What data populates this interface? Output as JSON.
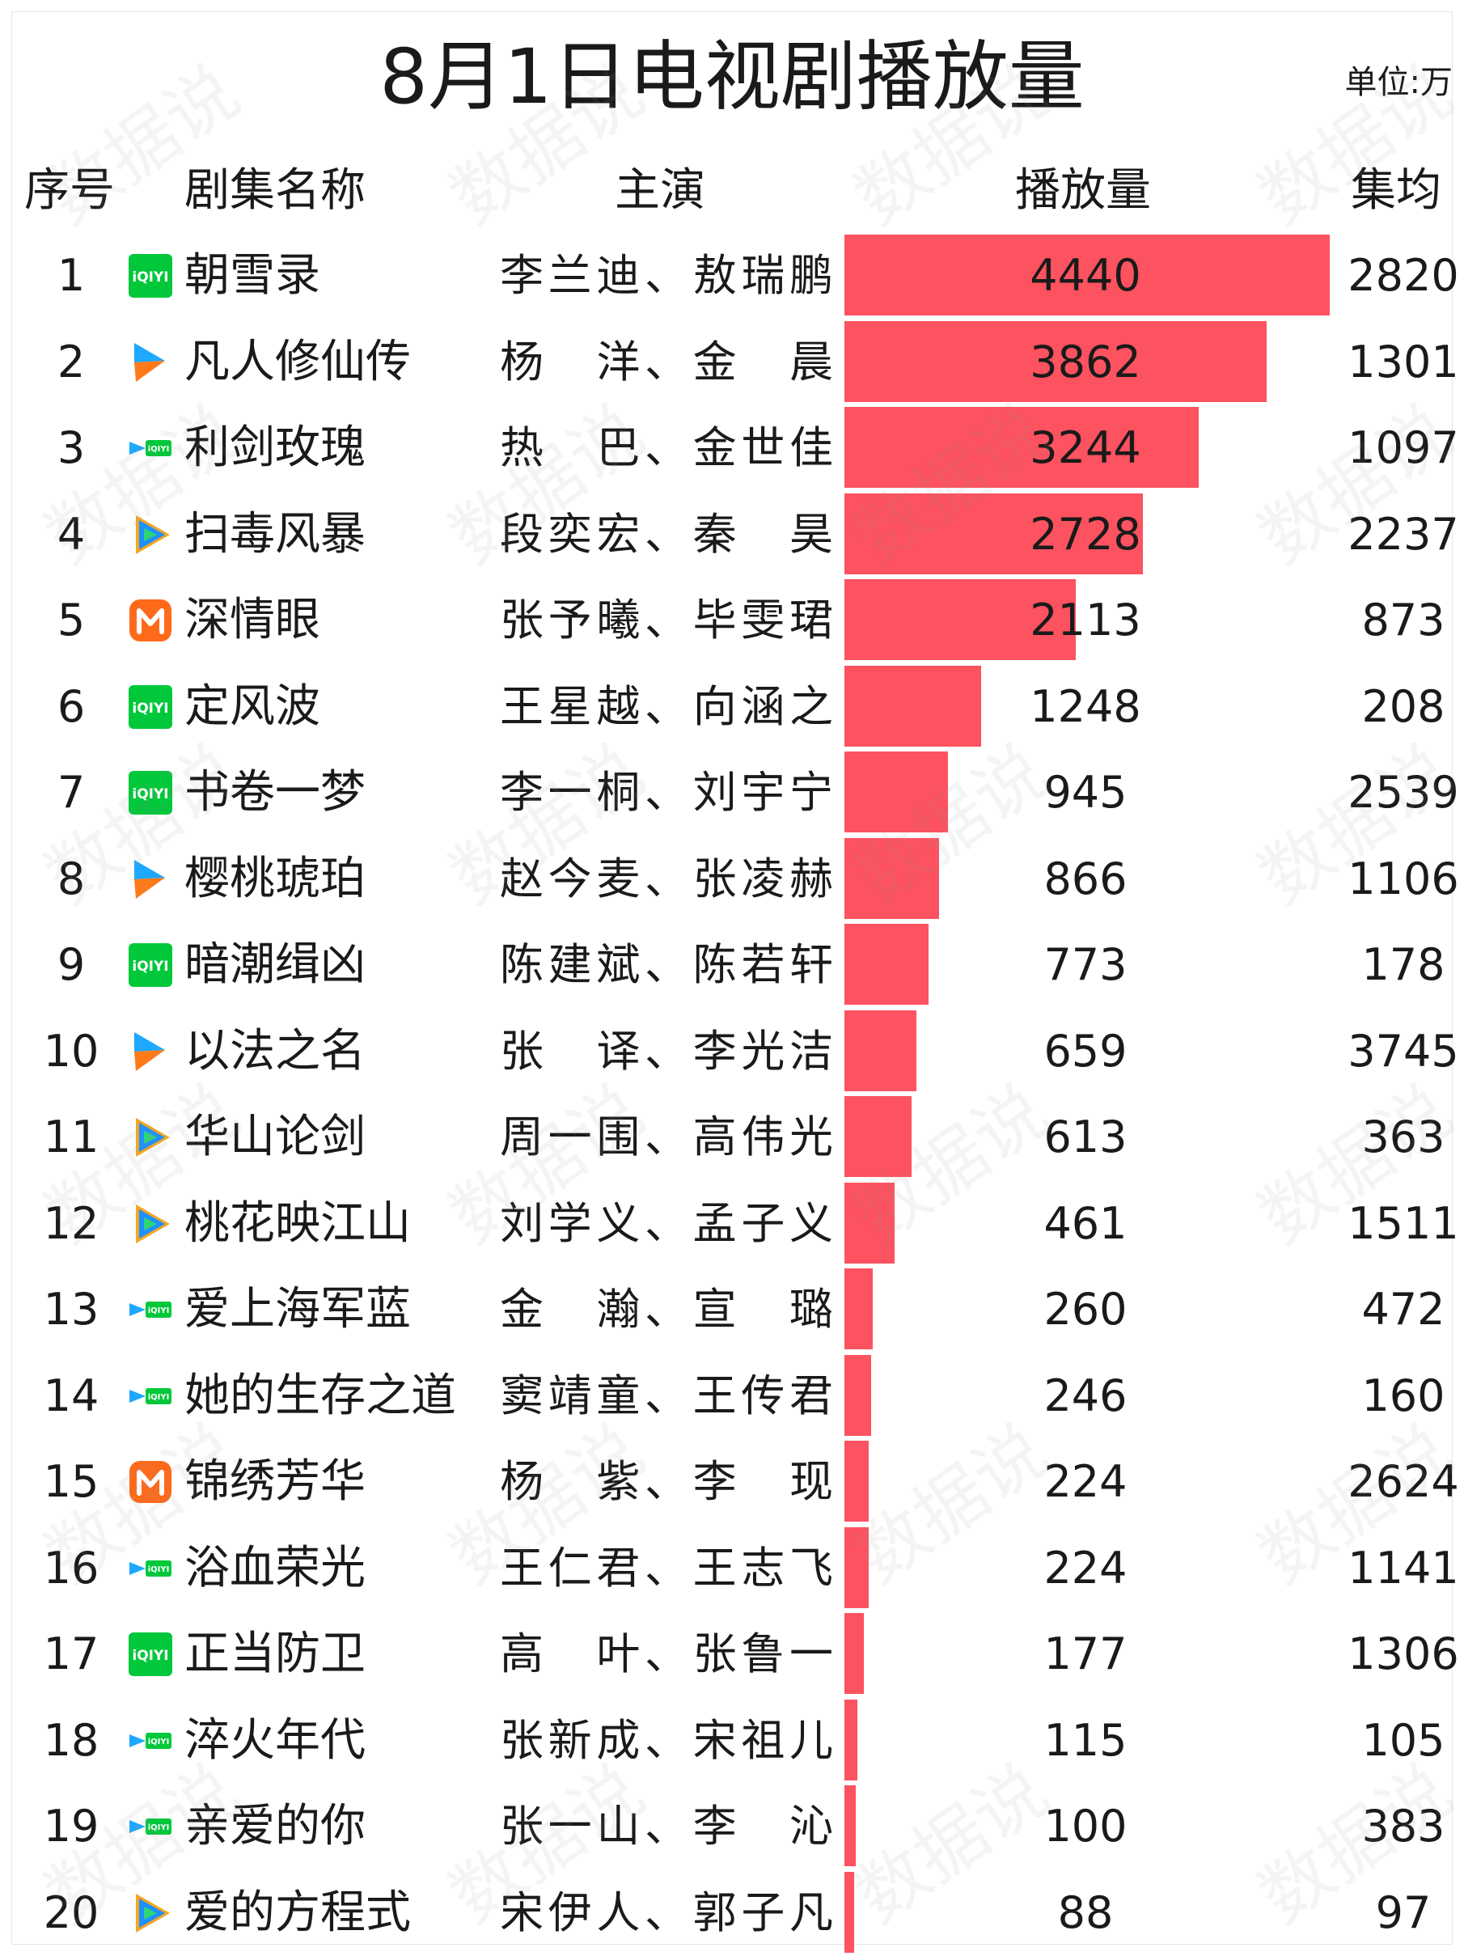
{
  "title": "8月1日电视剧播放量",
  "unit": "单位:万",
  "headers": {
    "index": "序号",
    "name": "剧集名称",
    "actors": "主演",
    "views": "播放量",
    "avg": "集均"
  },
  "watermark": "数据说",
  "bar_color": "#fd525f",
  "platform_logos": {
    "iqiyi": "iqiyi-logo-icon",
    "youku": "youku-logo-icon",
    "tencent": "tencent-video-logo-icon",
    "mgtv": "mgtv-logo-icon",
    "multi": "multi-platform-logo-icon"
  },
  "chart_data": {
    "type": "bar",
    "orientation": "horizontal",
    "title": "8月1日电视剧播放量",
    "unit": "单位:万",
    "xlim": [
      0,
      4440
    ],
    "rows": [
      {
        "index": "1",
        "name": "朝雪录",
        "actors": "李兰迪、敖瑞鹏",
        "views": 4440,
        "avg": 2820,
        "platform": "iqiyi"
      },
      {
        "index": "2",
        "name": "凡人修仙传",
        "actors": "杨　洋、金　晨",
        "views": 3862,
        "avg": 1301,
        "platform": "youku"
      },
      {
        "index": "3",
        "name": "利剑玫瑰",
        "actors": "热　巴、金世佳",
        "views": 3244,
        "avg": 1097,
        "platform": "multi"
      },
      {
        "index": "4",
        "name": "扫毒风暴",
        "actors": "段奕宏、秦　昊",
        "views": 2728,
        "avg": 2237,
        "platform": "tencent"
      },
      {
        "index": "5",
        "name": "深情眼",
        "actors": "张予曦、毕雯珺",
        "views": 2113,
        "avg": 873,
        "platform": "mgtv"
      },
      {
        "index": "6",
        "name": "定风波",
        "actors": "王星越、向涵之",
        "views": 1248,
        "avg": 208,
        "platform": "iqiyi"
      },
      {
        "index": "7",
        "name": "书卷一梦",
        "actors": "李一桐、刘宇宁",
        "views": 945,
        "avg": 2539,
        "platform": "iqiyi"
      },
      {
        "index": "8",
        "name": "樱桃琥珀",
        "actors": "赵今麦、张凌赫",
        "views": 866,
        "avg": 1106,
        "platform": "youku"
      },
      {
        "index": "9",
        "name": "暗潮缉凶",
        "actors": "陈建斌、陈若轩",
        "views": 773,
        "avg": 178,
        "platform": "iqiyi"
      },
      {
        "index": "10",
        "name": "以法之名",
        "actors": "张　译、李光洁",
        "views": 659,
        "avg": 3745,
        "platform": "youku"
      },
      {
        "index": "11",
        "name": "华山论剑",
        "actors": "周一围、高伟光",
        "views": 613,
        "avg": 363,
        "platform": "tencent"
      },
      {
        "index": "12",
        "name": "桃花映江山",
        "actors": "刘学义、孟子义",
        "views": 461,
        "avg": 1511,
        "platform": "tencent"
      },
      {
        "index": "13",
        "name": "爱上海军蓝",
        "actors": "金　瀚、宣　璐",
        "views": 260,
        "avg": 472,
        "platform": "multi"
      },
      {
        "index": "14",
        "name": "她的生存之道",
        "actors": "窦靖童、王传君",
        "views": 246,
        "avg": 160,
        "platform": "multi"
      },
      {
        "index": "15",
        "name": "锦绣芳华",
        "actors": "杨　紫、李　现",
        "views": 224,
        "avg": 2624,
        "platform": "mgtv"
      },
      {
        "index": "16",
        "name": "浴血荣光",
        "actors": "王仁君、王志飞",
        "views": 224,
        "avg": 1141,
        "platform": "multi"
      },
      {
        "index": "17",
        "name": "正当防卫",
        "actors": "高　叶、张鲁一",
        "views": 177,
        "avg": 1306,
        "platform": "iqiyi"
      },
      {
        "index": "18",
        "name": "淬火年代",
        "actors": "张新成、宋祖儿",
        "views": 115,
        "avg": 105,
        "platform": "multi"
      },
      {
        "index": "19",
        "name": "亲爱的你",
        "actors": "张一山、李　沁",
        "views": 100,
        "avg": 383,
        "platform": "multi"
      },
      {
        "index": "20",
        "name": "爱的方程式",
        "actors": "宋伊人、郭子凡",
        "views": 88,
        "avg": 97,
        "platform": "tencent"
      }
    ]
  }
}
